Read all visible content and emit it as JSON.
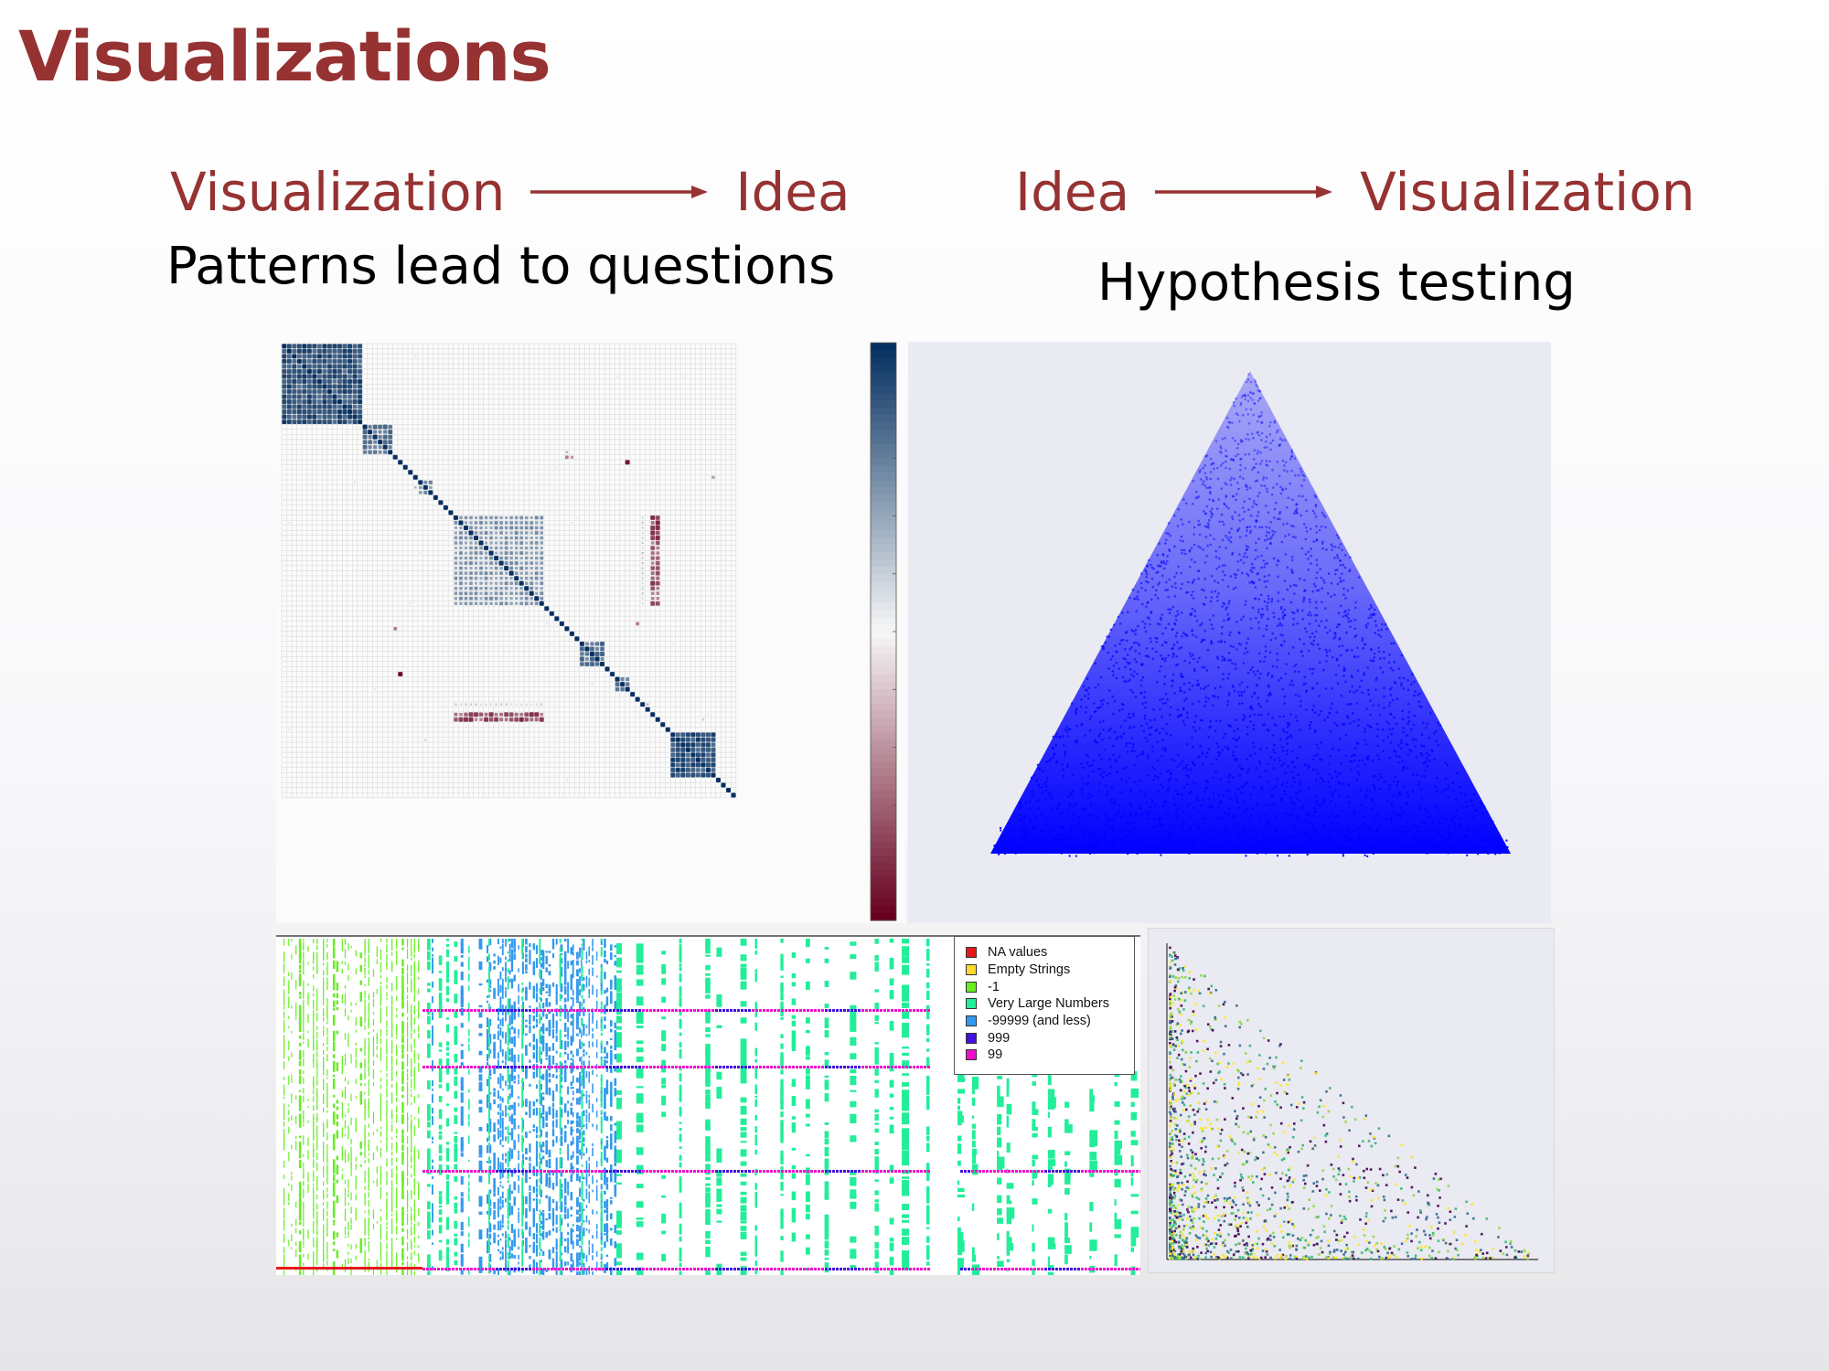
{
  "slide": {
    "title": "Visualizations",
    "left": {
      "from": "Visualization",
      "to": "Idea",
      "subtitle": "Patterns lead to questions"
    },
    "right": {
      "from": "Idea",
      "to": "Visualization",
      "subtitle": "Hypothesis testing"
    },
    "accent_color": "#963232",
    "arrow_icon": "long-right-arrow"
  },
  "figures": {
    "correlation_matrix": {
      "type": "heatmap",
      "colormap": "RdBu",
      "colormap_colors": [
        "#67001f",
        "#f7f7f7",
        "#053061"
      ]
    },
    "triangle_density": {
      "type": "scatter",
      "point_color": "#0000ff",
      "background": "#eaeaf2"
    },
    "missing_values": {
      "type": "heatmap",
      "legend": [
        {
          "label": "NA values",
          "color": "#e41a1c"
        },
        {
          "label": "Empty Strings",
          "color": "#ffd92f"
        },
        {
          "label": "-1",
          "color": "#66ee22"
        },
        {
          "label": "Very Large Numbers",
          "color": "#22ee99"
        },
        {
          "label": "-99999 (and less)",
          "color": "#3399ee"
        },
        {
          "label": "999",
          "color": "#4411dd"
        },
        {
          "label": "99",
          "color": "#ee11cc"
        }
      ]
    },
    "triangle_scatter": {
      "type": "scatter",
      "colormap": "viridis",
      "background": "#eaeaf2"
    }
  }
}
